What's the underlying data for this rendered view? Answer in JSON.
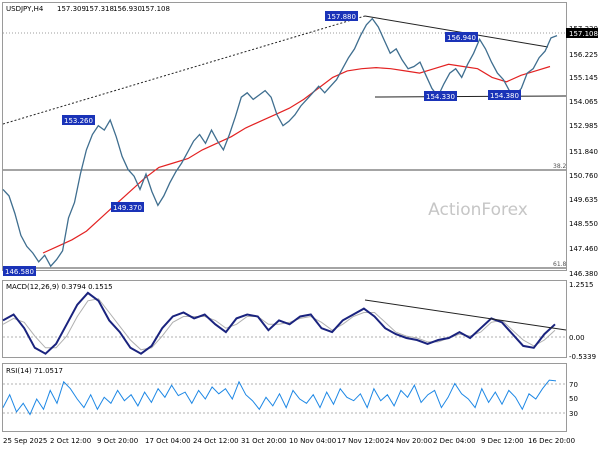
{
  "chart_data": {
    "type": "line",
    "title": "USDJPY,H4",
    "ohlc": {
      "open": "157.309",
      "high": "157.318",
      "low": "156.930",
      "close": "157.108"
    },
    "watermark": "ActionForex",
    "x_ticks": [
      "25 Sep 2025",
      "2 Oct 12:00",
      "9 Oct 20:00",
      "17 Oct 04:00",
      "24 Oct 12:00",
      "31 Oct 20:00",
      "10 Nov 04:00",
      "17 Nov 12:00",
      "24 Nov 20:00",
      "2 Dec 04:00",
      "9 Dec 12:00",
      "16 Dec 20:00"
    ],
    "price_panel": {
      "ylim": [
        146.38,
        158.0
      ],
      "y_ticks": [
        "157.330",
        "156.225",
        "155.145",
        "154.065",
        "152.985",
        "151.840",
        "150.760",
        "149.635",
        "148.550",
        "147.460",
        "146.380"
      ],
      "current_price": "157.108",
      "series": [
        {
          "name": "",
          "color": "#3f6e8f",
          "values": [
            150.1,
            149.8,
            149.0,
            148.0,
            147.5,
            147.2,
            146.8,
            147.1,
            146.6,
            146.9,
            147.3,
            148.8,
            149.5,
            150.8,
            151.9,
            152.6,
            153.0,
            152.8,
            153.26,
            152.5,
            151.6,
            151.0,
            150.7,
            150.1,
            150.8,
            150.0,
            149.37,
            149.8,
            150.4,
            150.9,
            151.3,
            151.8,
            152.3,
            152.6,
            152.2,
            152.8,
            152.3,
            151.9,
            152.6,
            153.4,
            154.3,
            154.5,
            154.2,
            154.4,
            154.6,
            154.3,
            153.5,
            153.0,
            153.2,
            153.5,
            153.9,
            154.2,
            154.5,
            154.8,
            154.5,
            154.8,
            155.1,
            155.6,
            156.1,
            156.5,
            157.1,
            157.6,
            157.88,
            157.5,
            156.9,
            156.3,
            156.5,
            156.0,
            155.6,
            155.7,
            155.9,
            155.3,
            154.7,
            154.33,
            154.9,
            155.4,
            155.6,
            155.2,
            155.8,
            156.3,
            156.94,
            156.5,
            155.9,
            155.4,
            155.1,
            154.6,
            154.38,
            154.7,
            155.4,
            155.6,
            156.1,
            156.4,
            157.0,
            157.108
          ]
        },
        {
          "name": "",
          "color": "#e32222",
          "values": [
            147.2,
            147.5,
            147.8,
            148.2,
            148.8,
            149.4,
            150.0,
            150.6,
            151.1,
            151.3,
            151.5,
            151.9,
            152.2,
            152.5,
            152.9,
            153.2,
            153.5,
            153.8,
            154.2,
            154.7,
            155.2,
            155.5,
            155.6,
            155.65,
            155.6,
            155.5,
            155.4,
            155.6,
            155.8,
            155.7,
            155.6,
            155.2,
            155.0,
            155.3,
            155.5,
            155.7
          ]
        },
        {
          "name": "",
          "color": "#000000",
          "values": [
            152.8,
            157.88
          ]
        },
        {
          "name": "",
          "color": "#000000",
          "values": [
            157.88,
            156.5
          ]
        },
        {
          "name": "",
          "color": "#000000",
          "values": [
            154.6,
            154.7
          ]
        },
        {
          "name": "",
          "color": "#000000",
          "values": [
            157.33
          ]
        }
      ],
      "labels": [
        "157.880",
        "156.940",
        "154.330",
        "154.380",
        "153.260",
        "149.370",
        "146.580"
      ],
      "fib_levels": [
        {
          "label": "38.2",
          "value": 150.96
        },
        {
          "label": "61.8",
          "value": 146.66
        }
      ]
    },
    "macd_panel": {
      "title": "MACD(12,26,9) 0.3794 0.1515",
      "ylim": [
        -0.5339,
        1.2515
      ],
      "y_ticks": [
        "1.2515",
        "0.00",
        "-0.5339"
      ],
      "series": [
        {
          "name": "",
          "color": "#1a237e",
          "values": [
            0.4,
            0.55,
            0.2,
            -0.3,
            -0.45,
            -0.2,
            0.3,
            0.8,
            1.1,
            0.9,
            0.4,
            0.1,
            -0.3,
            -0.45,
            -0.25,
            0.2,
            0.5,
            0.6,
            0.45,
            0.55,
            0.3,
            0.1,
            0.45,
            0.55,
            0.5,
            0.15,
            0.4,
            0.3,
            0.5,
            0.55,
            0.2,
            0.1,
            0.4,
            0.55,
            0.7,
            0.5,
            0.2,
            0.05,
            -0.05,
            -0.1,
            -0.2,
            -0.1,
            -0.05,
            0.1,
            -0.05,
            0.2,
            0.45,
            0.35,
            0.05,
            -0.25,
            -0.3,
            0.05,
            0.3
          ]
        },
        {
          "name": "",
          "color": "#b0b0b0",
          "values": [
            0.3,
            0.45,
            0.35,
            0.0,
            -0.3,
            -0.3,
            0.0,
            0.5,
            0.9,
            0.95,
            0.6,
            0.25,
            -0.1,
            -0.35,
            -0.3,
            0.0,
            0.35,
            0.5,
            0.5,
            0.5,
            0.4,
            0.2,
            0.3,
            0.5,
            0.5,
            0.3,
            0.3,
            0.35,
            0.45,
            0.5,
            0.35,
            0.15,
            0.3,
            0.5,
            0.6,
            0.6,
            0.35,
            0.1,
            0.0,
            -0.05,
            -0.15,
            -0.15,
            -0.05,
            0.05,
            0.0,
            0.1,
            0.35,
            0.4,
            0.15,
            -0.1,
            -0.25,
            -0.1,
            0.15
          ]
        },
        {
          "name": "",
          "color": "#000000",
          "values": [
            0.75,
            0.15
          ]
        }
      ]
    },
    "rsi_panel": {
      "title": "RSI(14) 71.0517",
      "ylim": [
        0,
        100
      ],
      "y_ticks": [
        "70",
        "50",
        "30"
      ],
      "series": [
        {
          "name": "",
          "color": "#1e88e5",
          "values": [
            40,
            55,
            35,
            45,
            32,
            50,
            38,
            60,
            45,
            70,
            62,
            50,
            40,
            55,
            38,
            52,
            45,
            60,
            48,
            55,
            42,
            58,
            46,
            62,
            52,
            66,
            54,
            58,
            45,
            60,
            50,
            64,
            56,
            62,
            50,
            70,
            55,
            48,
            38,
            52,
            42,
            56,
            40,
            60,
            50,
            45,
            55,
            40,
            58,
            44,
            62,
            52,
            48,
            56,
            40,
            62,
            48,
            55,
            42,
            60,
            52,
            66,
            46,
            55,
            60,
            40,
            52,
            68,
            56,
            50,
            40,
            62,
            46,
            58,
            44,
            60,
            52,
            38,
            56,
            50,
            62,
            72,
            71.05
          ]
        }
      ]
    }
  }
}
